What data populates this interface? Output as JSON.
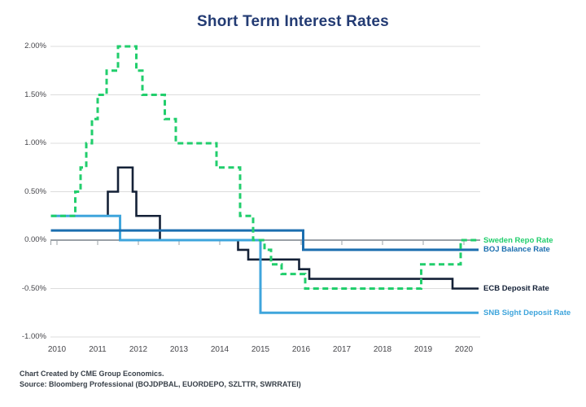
{
  "title": "Short Term Interest Rates",
  "footer": {
    "line1": "Chart Created by CME Group Economics.",
    "line2": "Source: Bloomberg Professional (BOJDPBAL, EUORDEPO, SZLTTR, SWRRATEI)"
  },
  "chart_data": {
    "type": "line",
    "subtype": "step",
    "title": "Short Term Interest Rates",
    "xlabel": "",
    "ylabel": "",
    "grid": true,
    "legend_position": "right-of-line-ends",
    "xlim": [
      2009.85,
      2020.35
    ],
    "ylim": [
      -1.0,
      2.0
    ],
    "x_ticks": [
      2010,
      2011,
      2012,
      2013,
      2014,
      2015,
      2016,
      2017,
      2018,
      2019,
      2020
    ],
    "y_ticks": [
      {
        "value": 2.0,
        "label": "2.00%"
      },
      {
        "value": 1.5,
        "label": "1.50%"
      },
      {
        "value": 1.0,
        "label": "1.00%"
      },
      {
        "value": 0.5,
        "label": "0.50%"
      },
      {
        "value": 0.0,
        "label": "0.00%"
      },
      {
        "value": -0.5,
        "label": "-0.50%"
      },
      {
        "value": -1.0,
        "label": "-1.00%"
      }
    ],
    "unit": "percent",
    "series": [
      {
        "name": "Sweden Repo Rate",
        "color": "#21ce6c",
        "dashed": true,
        "points": [
          [
            2009.85,
            0.25
          ],
          [
            2010.45,
            0.5
          ],
          [
            2010.58,
            0.75
          ],
          [
            2010.72,
            1.0
          ],
          [
            2010.86,
            1.25
          ],
          [
            2011.0,
            1.5
          ],
          [
            2011.22,
            1.75
          ],
          [
            2011.5,
            2.0
          ],
          [
            2011.95,
            1.75
          ],
          [
            2012.1,
            1.5
          ],
          [
            2012.65,
            1.25
          ],
          [
            2012.92,
            1.0
          ],
          [
            2013.92,
            0.75
          ],
          [
            2014.5,
            0.25
          ],
          [
            2014.82,
            0.0
          ],
          [
            2015.1,
            -0.1
          ],
          [
            2015.26,
            -0.25
          ],
          [
            2015.52,
            -0.35
          ],
          [
            2016.1,
            -0.5
          ],
          [
            2018.95,
            -0.25
          ],
          [
            2019.92,
            0.0
          ]
        ]
      },
      {
        "name": "BOJ Balance Rate",
        "color": "#1b6eaf",
        "dashed": false,
        "points": [
          [
            2009.85,
            0.1
          ],
          [
            2016.05,
            -0.1
          ]
        ]
      },
      {
        "name": "ECB Deposit Rate",
        "color": "#142137",
        "dashed": false,
        "points": [
          [
            2009.85,
            0.25
          ],
          [
            2011.25,
            0.5
          ],
          [
            2011.5,
            0.75
          ],
          [
            2011.86,
            0.5
          ],
          [
            2011.95,
            0.25
          ],
          [
            2012.53,
            0.0
          ],
          [
            2014.45,
            -0.1
          ],
          [
            2014.7,
            -0.2
          ],
          [
            2015.95,
            -0.3
          ],
          [
            2016.2,
            -0.4
          ],
          [
            2019.72,
            -0.5
          ]
        ]
      },
      {
        "name": "SNB Sight Deposit Rate",
        "color": "#3fa5dc",
        "dashed": false,
        "points": [
          [
            2009.85,
            0.25
          ],
          [
            2011.55,
            0.0
          ],
          [
            2015.0,
            -0.75
          ]
        ]
      }
    ]
  }
}
